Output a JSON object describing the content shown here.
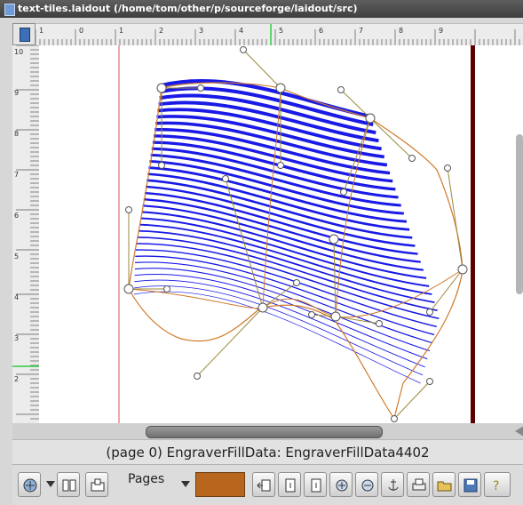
{
  "window": {
    "title": "text-tiles.laidout (/home/tom/other/p/sourceforge/laidout/src)"
  },
  "ruler": {
    "top_labels": [
      "1",
      "0",
      "1",
      "2",
      "3",
      "4",
      "5",
      "6",
      "7",
      "8",
      "9"
    ],
    "left_labels": [
      "10",
      "9",
      "8",
      "7",
      "6",
      "5",
      "4",
      "3",
      "2"
    ]
  },
  "status": {
    "text": "(page 0) EngraverFillData: EngraverFillData4402"
  },
  "toolbar": {
    "pages_label": "Pages",
    "color_swatch": "#b8651e"
  },
  "colors": {
    "engraving_lines": "#1a1ae6",
    "mesh_outline": "#d07a2a",
    "control_handles": "#9a8a3a",
    "page_margin_left": "#e05050",
    "page_edge_right": "#5a0000"
  }
}
